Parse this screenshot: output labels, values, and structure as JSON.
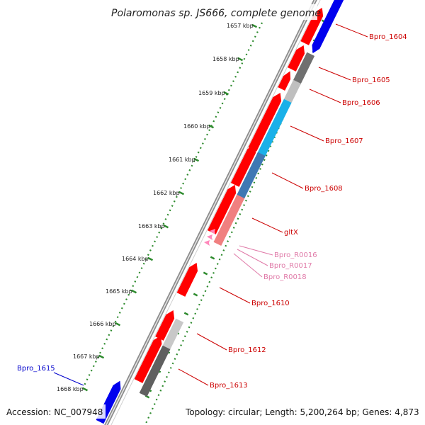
{
  "title": "Polaromonas sp. JS666, complete genome",
  "footer": {
    "accession": "Accession: NC_007948",
    "summary": "Topology: circular; Length: 5,200,264 bp; Genes: 4,873"
  },
  "colors": {
    "backbone": "#8c8c8c",
    "tick_dots": "#2e8b2e",
    "gene_forward": "#ff0000",
    "gene_reverse": "#0000ff",
    "rna": "#ff88bb",
    "label_red": "#cc0000",
    "label_blue": "#0000cc",
    "label_pink": "#e07aa8"
  },
  "scale_ticks": [
    {
      "label": "1657 kbp"
    },
    {
      "label": "1658 kbp"
    },
    {
      "label": "1659 kbp"
    },
    {
      "label": "1660 kbp"
    },
    {
      "label": "1661 kbp"
    },
    {
      "label": "1662 kbp"
    },
    {
      "label": "1663 kbp"
    },
    {
      "label": "1664 kbp"
    },
    {
      "label": "1665 kbp"
    },
    {
      "label": "1666 kbp"
    },
    {
      "label": "1667 kbp"
    },
    {
      "label": "1668 kbp"
    }
  ],
  "gene_labels": [
    {
      "text": "Bpro_1604",
      "color": "#cc0000"
    },
    {
      "text": "Bpro_1605",
      "color": "#cc0000"
    },
    {
      "text": "Bpro_1606",
      "color": "#cc0000"
    },
    {
      "text": "Bpro_1607",
      "color": "#cc0000"
    },
    {
      "text": "Bpro_1608",
      "color": "#cc0000"
    },
    {
      "text": "gltX",
      "color": "#cc0000"
    },
    {
      "text": "Bpro_R0016",
      "color": "#e07aa8"
    },
    {
      "text": "Bpro_R0017",
      "color": "#e07aa8"
    },
    {
      "text": "Bpro_R0018",
      "color": "#e07aa8"
    },
    {
      "text": "Bpro_1610",
      "color": "#cc0000"
    },
    {
      "text": "Bpro_1612",
      "color": "#cc0000"
    },
    {
      "text": "Bpro_1613",
      "color": "#cc0000"
    },
    {
      "text": "Bpro_1615",
      "color": "#0000cc"
    }
  ]
}
